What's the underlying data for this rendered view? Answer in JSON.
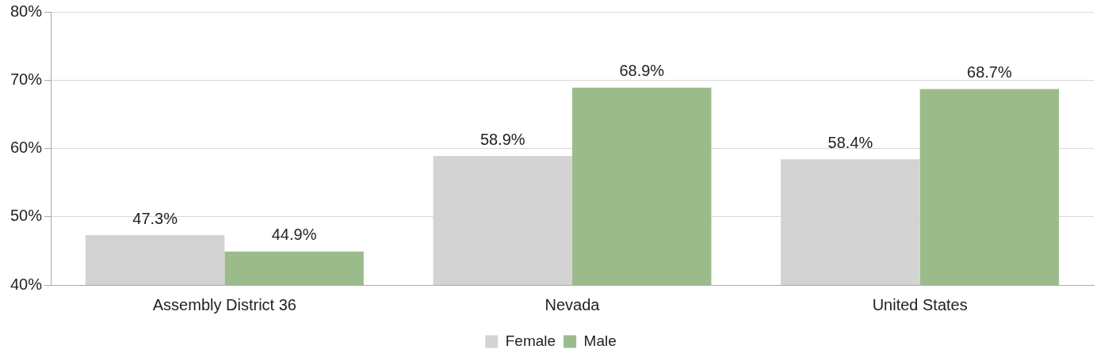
{
  "chart_data": {
    "type": "bar",
    "categories": [
      "Assembly District 36",
      "Nevada",
      "United States"
    ],
    "series": [
      {
        "name": "Female",
        "color": "#d3d3d3",
        "values": [
          47.3,
          58.9,
          58.4
        ],
        "value_labels": [
          "47.3%",
          "58.9%",
          "58.4%"
        ]
      },
      {
        "name": "Male",
        "color": "#9bbb8b",
        "values": [
          44.9,
          68.9,
          68.7
        ],
        "value_labels": [
          "44.9%",
          "68.9%",
          "68.7%"
        ]
      }
    ],
    "ylim": [
      40,
      80
    ],
    "yticks": [
      {
        "value": 40,
        "label": "40%"
      },
      {
        "value": 50,
        "label": "50%"
      },
      {
        "value": 60,
        "label": "60%"
      },
      {
        "value": 70,
        "label": "70%"
      },
      {
        "value": 80,
        "label": "80%"
      }
    ],
    "grid": "y",
    "legend": "bottom"
  }
}
